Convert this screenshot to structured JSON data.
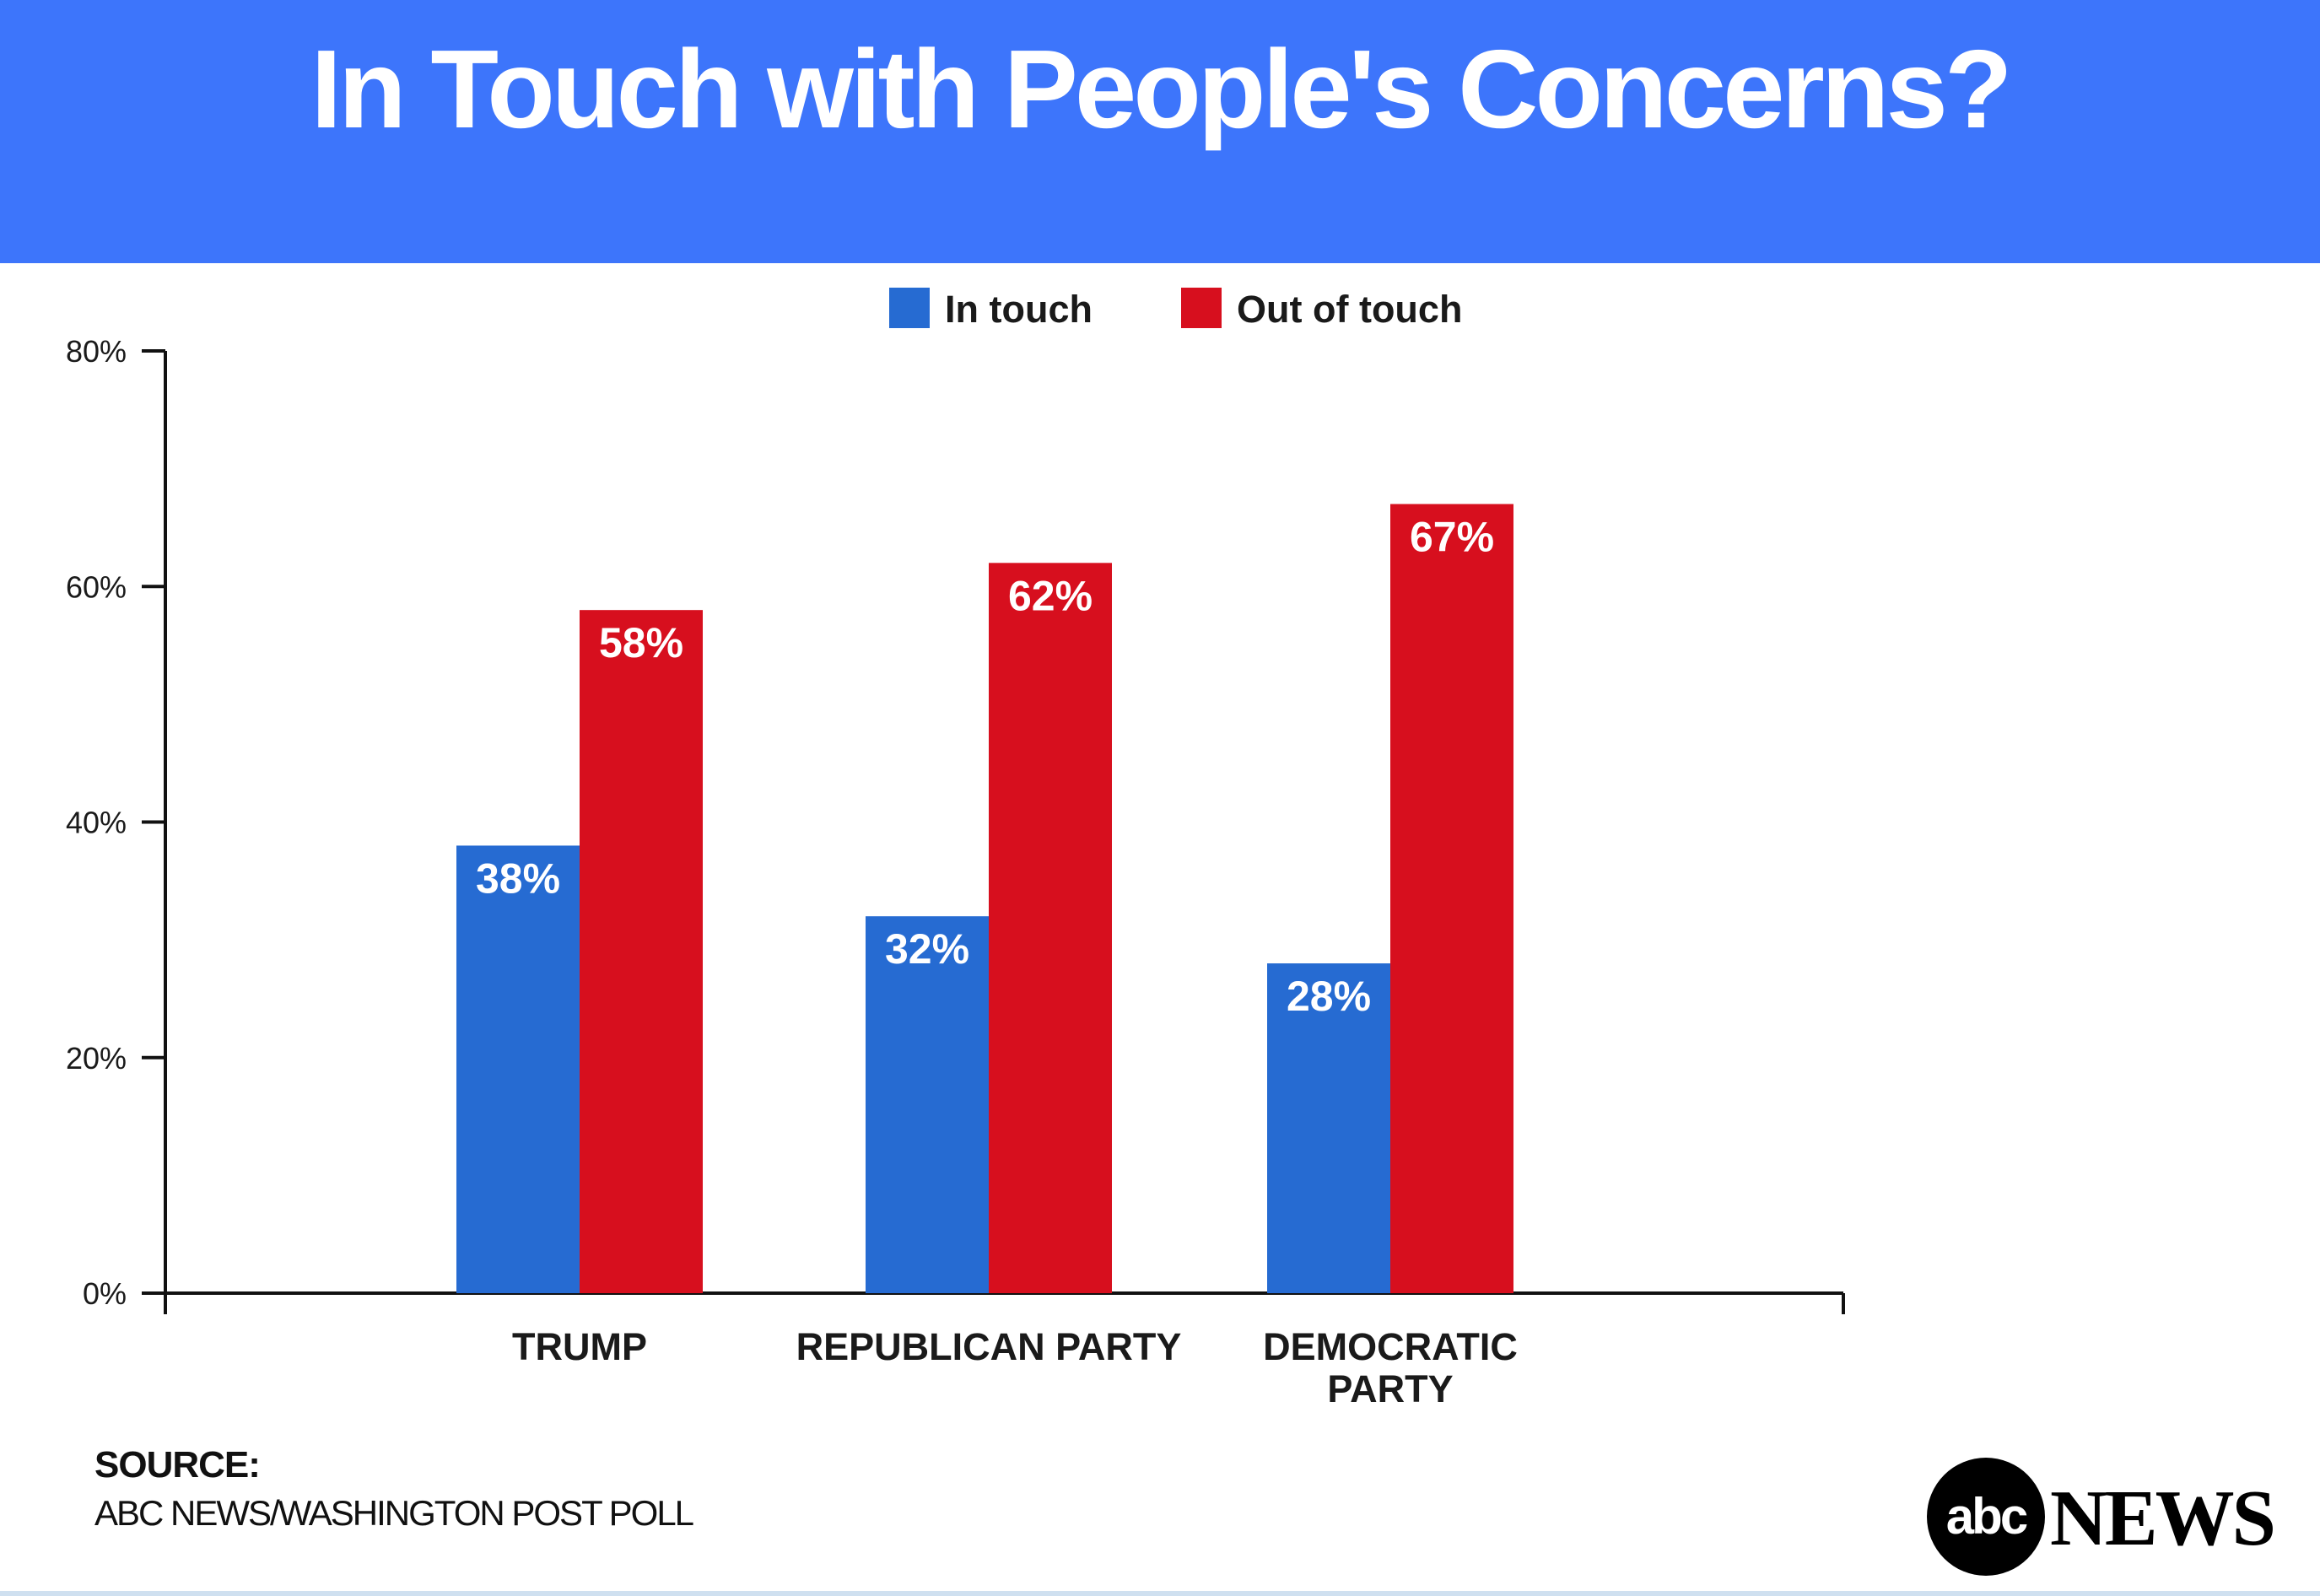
{
  "title": "In Touch with People's Concerns?",
  "colors": {
    "header_bg": "#3d75fb",
    "in_touch": "#266bd2",
    "out_of_touch": "#d70f1e"
  },
  "chart_data": {
    "type": "bar",
    "title": "In Touch with People's Concerns?",
    "xlabel": "",
    "ylabel": "",
    "categories": [
      [
        "TRUMP"
      ],
      [
        "REPUBLICAN PARTY"
      ],
      [
        "DEMOCRATIC",
        "PARTY"
      ]
    ],
    "series": [
      {
        "name": "In touch",
        "color": "#266bd2",
        "values": [
          38,
          32,
          28
        ],
        "labels": [
          "38%",
          "32%",
          "28%"
        ]
      },
      {
        "name": "Out of touch",
        "color": "#d70f1e",
        "values": [
          58,
          62,
          67
        ],
        "labels": [
          "58%",
          "62%",
          "67%"
        ]
      }
    ],
    "ylim": [
      0,
      80
    ],
    "yticks": [
      0,
      20,
      40,
      60,
      80
    ],
    "ytick_labels": [
      "0%",
      "20%",
      "40%",
      "60%",
      "80%"
    ],
    "grid": false,
    "legend": "top-center"
  },
  "source": {
    "heading": "SOURCE:",
    "text": "ABC NEWS/WASHINGTON POST POLL"
  },
  "logo": {
    "circle_text": "abc",
    "word": "NEWS"
  }
}
